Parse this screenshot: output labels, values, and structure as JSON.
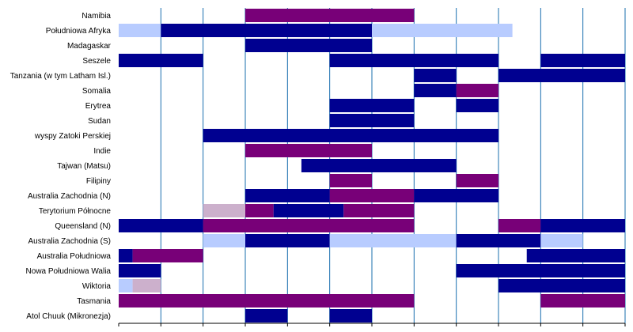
{
  "chart_data": {
    "type": "bar",
    "subtype": "timeline-gantt",
    "xlim": [
      0,
      12
    ],
    "grid": true,
    "legend": "none",
    "colors": {
      "navy": "#000090",
      "purple": "#780078",
      "lightblue": "#b8ccff",
      "lightpurple": "#ccb0cc",
      "grid": "#1a6fae"
    },
    "categories": [
      "Namibia",
      "Południowa Afryka",
      "Madagaskar",
      "Seszele",
      "Tanzania (w tym Latham Isl.)",
      "Somalia",
      "Erytrea",
      "Sudan",
      "wyspy Zatoki Perskiej",
      "Indie",
      "Tajwan (Matsu)",
      "Filipiny",
      "Australia Zachodnia (N)",
      "Terytorium Północne",
      "Queensland (N)",
      "Australia Zachodnia (S)",
      "Australia Południowa",
      "Nowa Południowa Walia",
      "Wiktoria",
      "Tasmania",
      "Atol Chuuk (Mikronezja)"
    ],
    "segments": [
      [
        {
          "start": 3,
          "end": 7,
          "color": "purple"
        }
      ],
      [
        {
          "start": 0,
          "end": 1,
          "color": "lightblue"
        },
        {
          "start": 1,
          "end": 6,
          "color": "navy"
        },
        {
          "start": 6,
          "end": 9.33,
          "color": "lightblue"
        }
      ],
      [
        {
          "start": 3,
          "end": 6,
          "color": "navy"
        }
      ],
      [
        {
          "start": 0,
          "end": 2,
          "color": "navy"
        },
        {
          "start": 5,
          "end": 9,
          "color": "navy"
        },
        {
          "start": 10,
          "end": 12,
          "color": "navy"
        }
      ],
      [
        {
          "start": 7,
          "end": 8,
          "color": "navy"
        },
        {
          "start": 9,
          "end": 12,
          "color": "navy"
        }
      ],
      [
        {
          "start": 7,
          "end": 8,
          "color": "navy"
        },
        {
          "start": 8,
          "end": 9,
          "color": "purple"
        }
      ],
      [
        {
          "start": 5,
          "end": 7,
          "color": "navy"
        },
        {
          "start": 8,
          "end": 9,
          "color": "navy"
        }
      ],
      [
        {
          "start": 5,
          "end": 7,
          "color": "navy"
        }
      ],
      [
        {
          "start": 2,
          "end": 9,
          "color": "navy"
        }
      ],
      [
        {
          "start": 3,
          "end": 6,
          "color": "purple"
        }
      ],
      [
        {
          "start": 4.33,
          "end": 8,
          "color": "navy"
        }
      ],
      [
        {
          "start": 5,
          "end": 6,
          "color": "purple"
        },
        {
          "start": 8,
          "end": 9,
          "color": "purple"
        }
      ],
      [
        {
          "start": 3,
          "end": 5,
          "color": "navy"
        },
        {
          "start": 5,
          "end": 7,
          "color": "purple"
        },
        {
          "start": 7,
          "end": 9,
          "color": "navy"
        }
      ],
      [
        {
          "start": 2,
          "end": 3,
          "color": "lightpurple"
        },
        {
          "start": 3,
          "end": 3.67,
          "color": "purple"
        },
        {
          "start": 3.67,
          "end": 5.33,
          "color": "navy"
        },
        {
          "start": 5.33,
          "end": 7,
          "color": "purple"
        }
      ],
      [
        {
          "start": 0,
          "end": 2,
          "color": "navy"
        },
        {
          "start": 2,
          "end": 7,
          "color": "purple"
        },
        {
          "start": 9,
          "end": 10,
          "color": "purple"
        },
        {
          "start": 10,
          "end": 12,
          "color": "navy"
        }
      ],
      [
        {
          "start": 2,
          "end": 3,
          "color": "lightblue"
        },
        {
          "start": 3,
          "end": 5,
          "color": "navy"
        },
        {
          "start": 5,
          "end": 8,
          "color": "lightblue"
        },
        {
          "start": 8,
          "end": 10,
          "color": "navy"
        },
        {
          "start": 10,
          "end": 11,
          "color": "lightblue"
        }
      ],
      [
        {
          "start": 0,
          "end": 0.33,
          "color": "navy"
        },
        {
          "start": 0.33,
          "end": 2,
          "color": "purple"
        },
        {
          "start": 9.67,
          "end": 12,
          "color": "navy"
        }
      ],
      [
        {
          "start": 0,
          "end": 1,
          "color": "navy"
        },
        {
          "start": 8,
          "end": 12,
          "color": "navy"
        }
      ],
      [
        {
          "start": 0,
          "end": 0.33,
          "color": "lightblue"
        },
        {
          "start": 0.33,
          "end": 1,
          "color": "lightpurple"
        },
        {
          "start": 9,
          "end": 12,
          "color": "navy"
        }
      ],
      [
        {
          "start": 0,
          "end": 7,
          "color": "purple"
        },
        {
          "start": 10,
          "end": 12,
          "color": "purple"
        }
      ],
      [
        {
          "start": 3,
          "end": 4,
          "color": "navy"
        },
        {
          "start": 5,
          "end": 6,
          "color": "navy"
        }
      ]
    ]
  }
}
